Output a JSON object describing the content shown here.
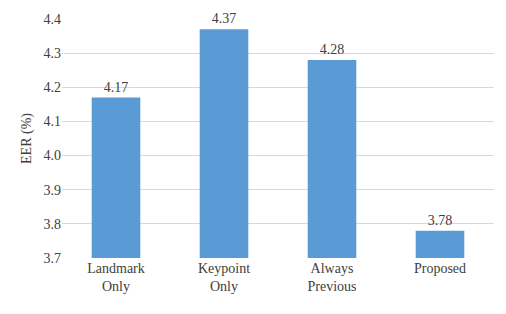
{
  "chart_data": {
    "type": "bar",
    "y_label": "EER (%)",
    "categories": [
      "Landmark Only",
      "Keypoint Only",
      "Always Previous",
      "Proposed"
    ],
    "values": [
      4.17,
      4.37,
      4.28,
      3.78
    ],
    "color": "#5b9bd5",
    "ylim": [
      3.7,
      4.4
    ],
    "yticks": [
      3.7,
      3.8,
      3.9,
      {
        "value": 4,
        "label": "4.0"
      },
      4.1,
      4.2,
      4.3,
      4.4
    ],
    "grid": true,
    "data_labels": true
  }
}
